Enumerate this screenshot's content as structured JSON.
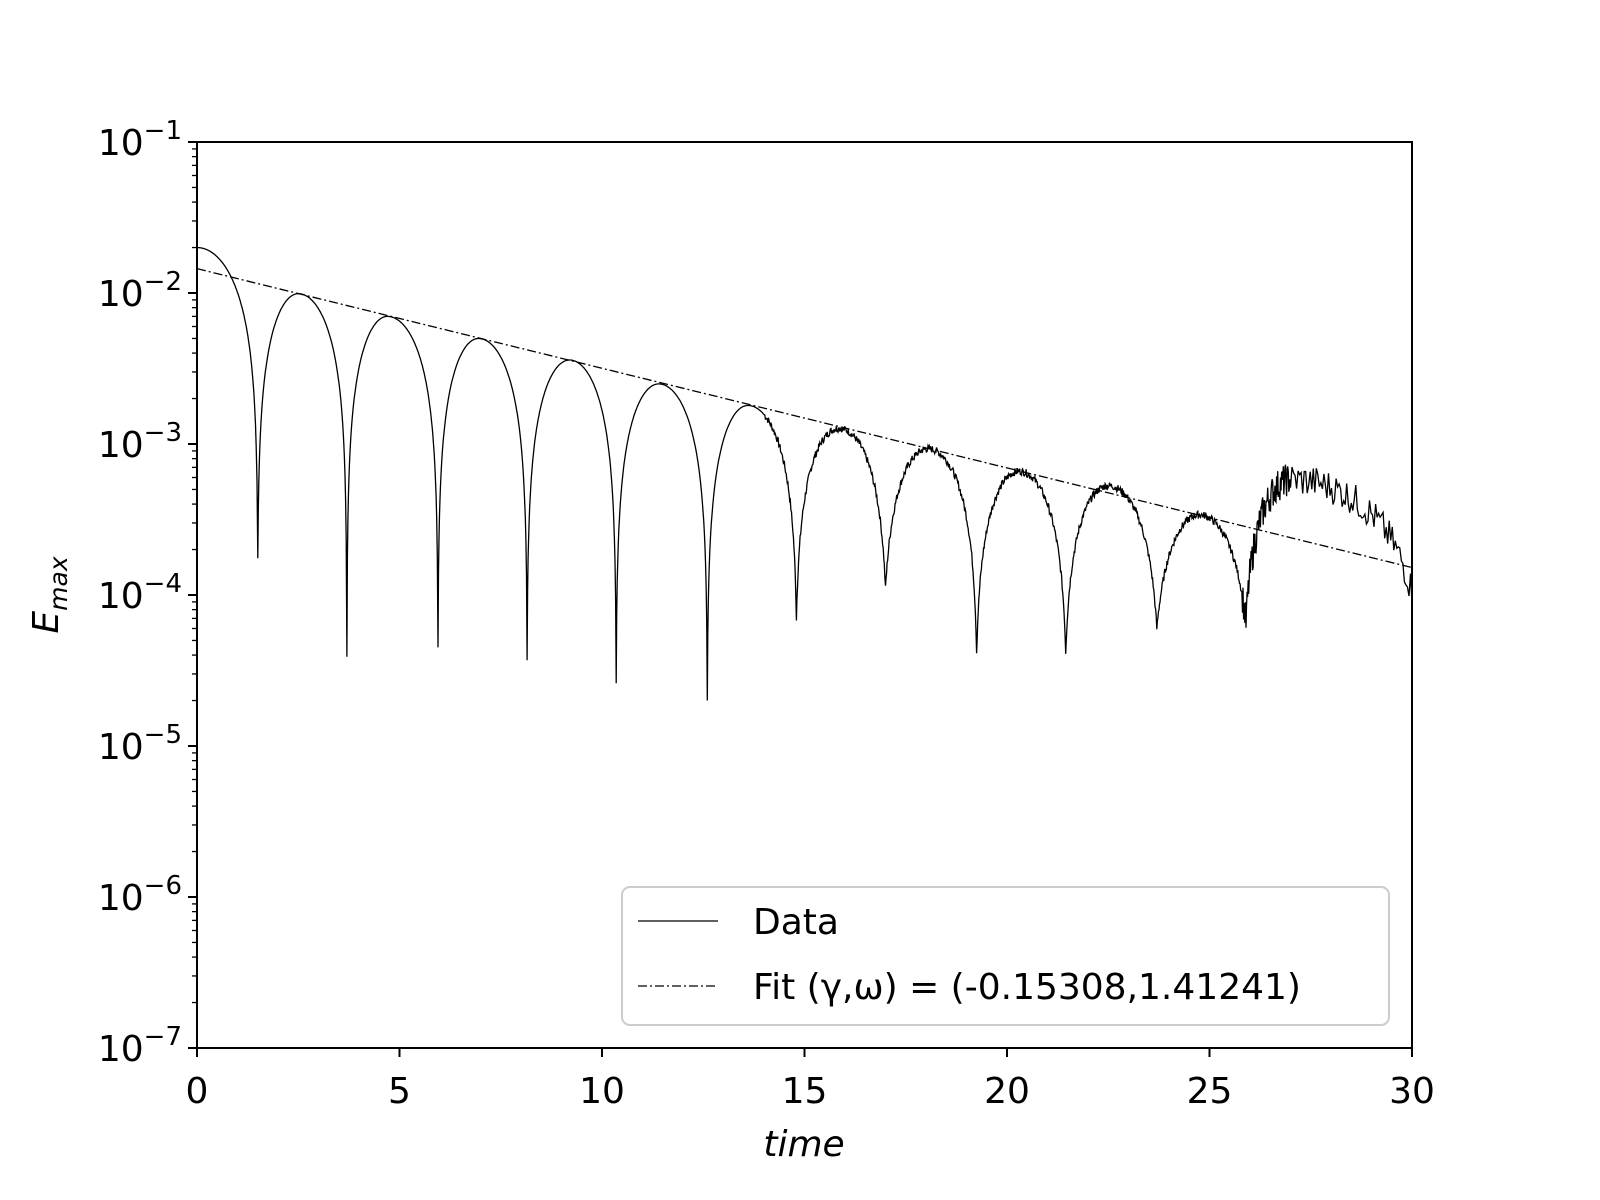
{
  "chart_data": {
    "type": "line",
    "title": "",
    "xlabel": "time",
    "ylabel_base": "E",
    "ylabel_sub": "max",
    "xlim": [
      0,
      30
    ],
    "ylim": [
      1e-07,
      0.1
    ],
    "y_scale": "log",
    "x_ticks": [
      "0",
      "5",
      "10",
      "15",
      "20",
      "25",
      "30"
    ],
    "y_tick_exponents": [
      "−1",
      "−2",
      "−3",
      "−4",
      "−5",
      "−6",
      "−7"
    ],
    "y_tick_base": "10",
    "grid": false,
    "legend_position": "lower-right",
    "series": [
      {
        "name": "Data",
        "style": "solid",
        "color": "#000000",
        "initial_amplitude": 0.02,
        "decay_rate": -0.153,
        "frequency": 1.412,
        "peaks": [
          [
            0.0,
            0.02
          ],
          [
            2.5,
            0.0099
          ],
          [
            4.7,
            0.007
          ],
          [
            6.95,
            0.005
          ],
          [
            9.2,
            0.0036
          ],
          [
            11.4,
            0.0025
          ],
          [
            13.6,
            0.0018
          ],
          [
            15.85,
            0.00127
          ],
          [
            18.05,
            0.00093
          ],
          [
            20.3,
            0.00066
          ],
          [
            22.5,
            0.00053
          ],
          [
            24.75,
            0.00034
          ],
          [
            27.0,
            0.00058
          ]
        ],
        "minima": [
          [
            1.5,
            0.000175
          ],
          [
            3.7,
            3.9e-05
          ],
          [
            5.95,
            4.5e-05
          ],
          [
            8.15,
            3.7e-05
          ],
          [
            10.35,
            2.6e-05
          ],
          [
            12.6,
            2e-05
          ],
          [
            14.8,
            7e-05
          ],
          [
            17.0,
            0.00011
          ],
          [
            19.25,
            4.2e-05
          ],
          [
            21.45,
            4.2e-05
          ],
          [
            23.7,
            6e-05
          ],
          [
            25.9,
            6.5e-05
          ],
          [
            30.0,
            0.000105
          ]
        ]
      },
      {
        "name": "Fit (γ,ω) = (-0.15308,1.41241)",
        "style": "dashdot",
        "color": "#000000",
        "x": [
          0,
          30
        ],
        "y": [
          0.0145,
          0.000152
        ]
      }
    ]
  }
}
